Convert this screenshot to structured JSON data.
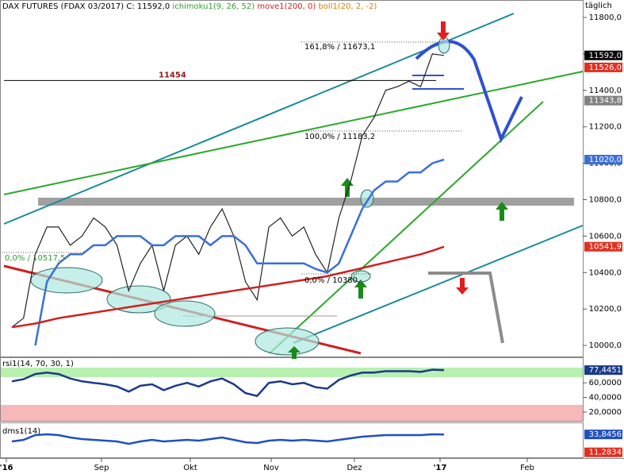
{
  "chart_data": [
    {
      "type": "line",
      "title": "DAX FUTURES (FDAX 03/2017) C: 11592,0",
      "indicators": [
        {
          "text": "ichimoku1(9, 26, 52)",
          "color": "#2e9e2e"
        },
        {
          "text": "move1(200, 0)",
          "color": "#d02020"
        },
        {
          "text": "boll1(20, 2, -2)",
          "color": "#d08000"
        }
      ],
      "period": "täglich",
      "x_labels": [
        "'16",
        "Sep",
        "Okt",
        "Nov",
        "Dez",
        "'17",
        "Feb"
      ],
      "ylim": [
        9935,
        11896
      ],
      "yticks": [
        {
          "value": 11800,
          "label": "11800,0"
        },
        {
          "value": 11600,
          "label": "11600,0"
        },
        {
          "value": 11400,
          "label": "11400,0"
        },
        {
          "value": 11200,
          "label": "11200,0"
        },
        {
          "value": 11000,
          "label": "11000,0"
        },
        {
          "value": 10800,
          "label": "10800,0"
        },
        {
          "value": 10600,
          "label": "10600,0"
        },
        {
          "value": 10400,
          "label": "10400,0"
        },
        {
          "value": 10200,
          "label": "10200,0"
        },
        {
          "value": 10000,
          "label": "10000,0"
        }
      ],
      "level": 11454,
      "annotations": [
        "161,8% / 11673,1",
        "100,0% / 11183,2",
        "0,0% / 10380,",
        "0,0% / 10517,5"
      ],
      "series": [
        {
          "name": "close",
          "color": "#222222",
          "values": [
            10100,
            10150,
            10500,
            10650,
            10650,
            10550,
            10600,
            10700,
            10650,
            10550,
            10300,
            10450,
            10550,
            10300,
            10550,
            10600,
            10500,
            10650,
            10750,
            10600,
            10350,
            10250,
            10650,
            10700,
            10600,
            10650,
            10500,
            10400,
            10700,
            10900,
            11150,
            11250,
            11400,
            11420,
            11450,
            11420,
            11600,
            11592
          ]
        },
        {
          "name": "ichimoku",
          "color": "#3a6fd8",
          "values": [
            null,
            null,
            10000,
            10350,
            10450,
            10500,
            10500,
            10550,
            10550,
            10600,
            10600,
            10600,
            10550,
            10550,
            10600,
            10600,
            10600,
            10550,
            10600,
            10600,
            10550,
            10450,
            10450,
            10450,
            10450,
            10450,
            10420,
            10400,
            10450,
            10600,
            10750,
            10850,
            10900,
            10900,
            10950,
            10950,
            11000,
            11020
          ]
        },
        {
          "name": "move",
          "color": "#d02020",
          "values": [
            10100,
            10110,
            10120,
            10135,
            10150,
            10160,
            10170,
            10180,
            10190,
            10200,
            10210,
            10220,
            10230,
            10240,
            10250,
            10260,
            10270,
            10280,
            10290,
            10300,
            10310,
            10320,
            10330,
            10340,
            10350,
            10360,
            10370,
            10380,
            10395,
            10410,
            10425,
            10440,
            10455,
            10470,
            10485,
            10500,
            10520,
            10541.9
          ]
        }
      ],
      "tags": [
        {
          "value": 11592,
          "label": "11592,0",
          "color": "#000000"
        },
        {
          "value": 11526,
          "label": "11526,0",
          "color": "#e03020"
        },
        {
          "value": 11343.8,
          "label": "11343,8",
          "color": "#808080"
        },
        {
          "value": 11020,
          "label": "11020,0",
          "color": "#3a6fd8"
        },
        {
          "value": 10541.9,
          "label": "10541,9",
          "color": "#e03020"
        }
      ]
    },
    {
      "type": "line",
      "title": "rsi1(14, 70, 30, 1)",
      "ylim": [
        8,
        95
      ],
      "yticks": [
        {
          "value": 60,
          "label": "60,0000"
        },
        {
          "value": 40,
          "label": "40,0000"
        },
        {
          "value": 20,
          "label": "20,0000"
        }
      ],
      "series": [
        {
          "name": "rsi",
          "color": "#1a3a8a",
          "values": [
            62,
            65,
            72,
            74,
            72,
            66,
            62,
            60,
            58,
            55,
            48,
            56,
            58,
            50,
            56,
            60,
            55,
            62,
            66,
            58,
            46,
            42,
            60,
            62,
            58,
            60,
            54,
            52,
            64,
            70,
            74,
            74,
            76,
            76,
            76,
            75,
            78,
            77.4451
          ]
        }
      ],
      "tags": [
        {
          "value": 77.4451,
          "label": "77,4451",
          "color": "#1a3a8a"
        }
      ]
    },
    {
      "type": "line",
      "title": "dms1(14)",
      "ylim": [
        4,
        46
      ],
      "yticks": [],
      "series": [
        {
          "name": "dms",
          "color": "#2050c0",
          "values": [
            25,
            27,
            33,
            34,
            33,
            30,
            28,
            27,
            26,
            25,
            22,
            25,
            27,
            25,
            26,
            27,
            26,
            28,
            30,
            27,
            24,
            23,
            26,
            27,
            26,
            27,
            26,
            25,
            27,
            29,
            31,
            32,
            33,
            33,
            33,
            33,
            34,
            33.8456
          ]
        }
      ],
      "tags": [
        {
          "value": 33.8456,
          "label": "33,8456",
          "color": "#2050c0"
        },
        {
          "value": 11.2834,
          "label": "11,2834",
          "color": "#e03020"
        }
      ]
    }
  ]
}
